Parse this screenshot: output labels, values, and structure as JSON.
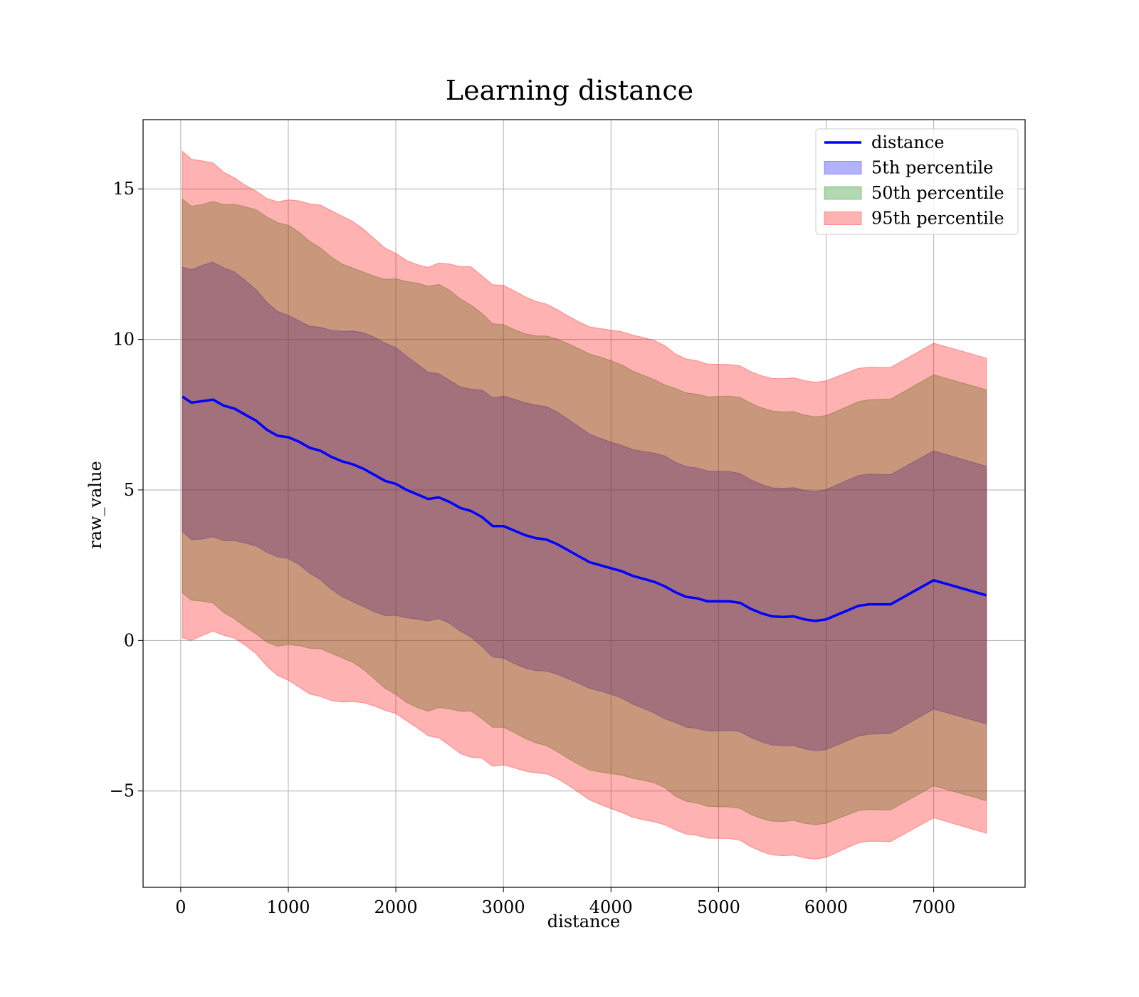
{
  "chart_data": {
    "type": "area",
    "title": "Learning distance",
    "xlabel": "distance",
    "ylabel": "raw_value",
    "xlim": [
      -350,
      7850
    ],
    "ylim": [
      -8.2,
      17.3
    ],
    "xticks": [
      0,
      1000,
      2000,
      3000,
      4000,
      5000,
      6000,
      7000
    ],
    "xtick_labels": [
      "0",
      "1000",
      "2000",
      "3000",
      "4000",
      "5000",
      "6000",
      "7000"
    ],
    "yticks": [
      -5,
      0,
      5,
      10,
      15
    ],
    "ytick_labels": [
      "−5",
      "0",
      "5",
      "10",
      "15"
    ],
    "grid": true,
    "legend_position": "top-right",
    "x": [
      15,
      100,
      200,
      300,
      400,
      500,
      600,
      700,
      800,
      900,
      1000,
      1100,
      1200,
      1300,
      1400,
      1500,
      1600,
      1700,
      1800,
      1900,
      2000,
      2100,
      2200,
      2300,
      2400,
      2500,
      2600,
      2700,
      2800,
      2900,
      3000,
      3100,
      3200,
      3300,
      3400,
      3500,
      3600,
      3700,
      3800,
      3900,
      4000,
      4100,
      4200,
      4300,
      4400,
      4500,
      4600,
      4700,
      4800,
      4900,
      5000,
      5100,
      5200,
      5300,
      5400,
      5500,
      5600,
      5700,
      5800,
      5900,
      6000,
      6100,
      6200,
      6300,
      6400,
      6500,
      6600,
      7000,
      7490
    ],
    "series": [
      {
        "name": "distance",
        "kind": "line",
        "color": "#0000ff",
        "values": [
          8.1,
          7.9,
          7.95,
          8.0,
          7.8,
          7.7,
          7.5,
          7.3,
          7.0,
          6.8,
          6.75,
          6.6,
          6.4,
          6.3,
          6.1,
          5.95,
          5.85,
          5.7,
          5.5,
          5.3,
          5.2,
          5.0,
          4.85,
          4.7,
          4.75,
          4.6,
          4.4,
          4.3,
          4.1,
          3.8,
          3.8,
          3.65,
          3.5,
          3.4,
          3.35,
          3.2,
          3.0,
          2.8,
          2.6,
          2.5,
          2.4,
          2.3,
          2.15,
          2.05,
          1.95,
          1.8,
          1.6,
          1.45,
          1.4,
          1.3,
          1.3,
          1.3,
          1.25,
          1.05,
          0.9,
          0.8,
          0.78,
          0.8,
          0.7,
          0.65,
          0.7,
          0.85,
          1.0,
          1.15,
          1.2,
          1.2,
          1.2,
          2.0,
          1.5
        ]
      },
      {
        "name": "5th percentile",
        "kind": "band",
        "color": "#0000ff",
        "offset": 4.3
      },
      {
        "name": "50th percentile",
        "kind": "band",
        "color": "#008000",
        "offset": 6.8
      },
      {
        "name": "95th percentile",
        "kind": "band",
        "color": "#ff0000",
        "offset": 7.9
      }
    ]
  }
}
